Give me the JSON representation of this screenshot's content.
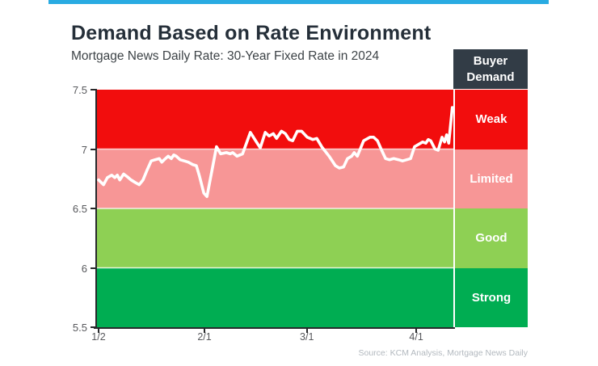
{
  "page": {
    "title": "Demand Based on Rate Environment",
    "subtitle": "Mortgage News Daily Rate: 30-Year Fixed Rate in 2024",
    "source": "Source: KCM Analysis, Mortgage News Daily",
    "accent_bar_color": "#29abe2"
  },
  "legend_header": {
    "line1": "Buyer",
    "line2": "Demand",
    "bg": "#323c46"
  },
  "chart_data": {
    "type": "line",
    "title": "Demand Based on Rate Environment",
    "subtitle": "Mortgage News Daily Rate: 30-Year Fixed Rate in 2024",
    "x_unit": "days since 1/2/2024",
    "xlim": [
      0,
      100.5
    ],
    "ylim": [
      5.5,
      7.5
    ],
    "yticks": [
      7.5,
      7,
      6.5,
      6,
      5.5
    ],
    "xticks": [
      {
        "label": "1/2",
        "day": 0
      },
      {
        "label": "2/1",
        "day": 30
      },
      {
        "label": "3/1",
        "day": 59
      },
      {
        "label": "4/1",
        "day": 90
      }
    ],
    "grid_color": "rgba(255,255,255,0.8)",
    "bands": [
      {
        "label": "Weak",
        "from": 7.0,
        "to": 7.5,
        "color": "#f20d0d"
      },
      {
        "label": "Limited",
        "from": 6.5,
        "to": 7.0,
        "color": "#f79696"
      },
      {
        "label": "Good",
        "from": 6.0,
        "to": 6.5,
        "color": "#8ed054"
      },
      {
        "label": "Strong",
        "from": 5.5,
        "to": 6.0,
        "color": "#00ad52"
      }
    ],
    "series": [
      {
        "name": "30-Year Fixed Rate",
        "color": "#ffffff",
        "points": [
          [
            0,
            6.74
          ],
          [
            1.4,
            6.7
          ],
          [
            2.5,
            6.76
          ],
          [
            3.7,
            6.78
          ],
          [
            4.6,
            6.76
          ],
          [
            5.3,
            6.78
          ],
          [
            6.0,
            6.74
          ],
          [
            7.1,
            6.79
          ],
          [
            8.0,
            6.77
          ],
          [
            9.2,
            6.74
          ],
          [
            10.3,
            6.72
          ],
          [
            11.5,
            6.7
          ],
          [
            12.6,
            6.74
          ],
          [
            13.7,
            6.82
          ],
          [
            14.9,
            6.9
          ],
          [
            16.0,
            6.91
          ],
          [
            17.2,
            6.92
          ],
          [
            17.9,
            6.89
          ],
          [
            18.6,
            6.91
          ],
          [
            19.7,
            6.94
          ],
          [
            20.6,
            6.92
          ],
          [
            21.3,
            6.95
          ],
          [
            22.0,
            6.94
          ],
          [
            23.1,
            6.91
          ],
          [
            24.3,
            6.9
          ],
          [
            25.4,
            6.89
          ],
          [
            26.6,
            6.87
          ],
          [
            27.7,
            6.86
          ],
          [
            28.6,
            6.77
          ],
          [
            29.8,
            6.63
          ],
          [
            30.7,
            6.6
          ],
          [
            33.4,
            7.02
          ],
          [
            34.6,
            6.96
          ],
          [
            36.2,
            6.97
          ],
          [
            37.3,
            6.96
          ],
          [
            38.0,
            6.97
          ],
          [
            39.2,
            6.94
          ],
          [
            40.8,
            6.96
          ],
          [
            43.0,
            7.14
          ],
          [
            44.7,
            7.06
          ],
          [
            45.8,
            7.01
          ],
          [
            47.2,
            7.14
          ],
          [
            48.3,
            7.11
          ],
          [
            49.5,
            7.13
          ],
          [
            50.4,
            7.09
          ],
          [
            51.8,
            7.15
          ],
          [
            52.9,
            7.13
          ],
          [
            54.0,
            7.08
          ],
          [
            55.0,
            7.07
          ],
          [
            56.3,
            7.15
          ],
          [
            57.5,
            7.15
          ],
          [
            59.1,
            7.1
          ],
          [
            60.7,
            7.08
          ],
          [
            61.8,
            7.09
          ],
          [
            63.2,
            7.02
          ],
          [
            65.3,
            6.94
          ],
          [
            67.1,
            6.86
          ],
          [
            68.2,
            6.84
          ],
          [
            69.4,
            6.85
          ],
          [
            70.5,
            6.92
          ],
          [
            71.7,
            6.94
          ],
          [
            72.4,
            6.97
          ],
          [
            73.3,
            6.94
          ],
          [
            75.1,
            7.07
          ],
          [
            76.9,
            7.1
          ],
          [
            77.9,
            7.1
          ],
          [
            79.0,
            7.07
          ],
          [
            80.2,
            6.99
          ],
          [
            81.3,
            6.92
          ],
          [
            82.4,
            6.91
          ],
          [
            83.6,
            6.92
          ],
          [
            85.0,
            6.91
          ],
          [
            86.1,
            6.9
          ],
          [
            87.3,
            6.91
          ],
          [
            88.4,
            6.92
          ],
          [
            89.5,
            7.02
          ],
          [
            90.7,
            7.04
          ],
          [
            91.8,
            7.06
          ],
          [
            92.7,
            7.05
          ],
          [
            93.4,
            7.08
          ],
          [
            94.1,
            7.07
          ],
          [
            95.3,
            7.0
          ],
          [
            96.2,
            6.99
          ],
          [
            97.3,
            7.1
          ],
          [
            98.0,
            7.06
          ],
          [
            98.6,
            7.12
          ],
          [
            99.2,
            7.05
          ],
          [
            100.2,
            7.35
          ]
        ]
      }
    ],
    "legend_position": "right",
    "line_width": 3.6
  }
}
